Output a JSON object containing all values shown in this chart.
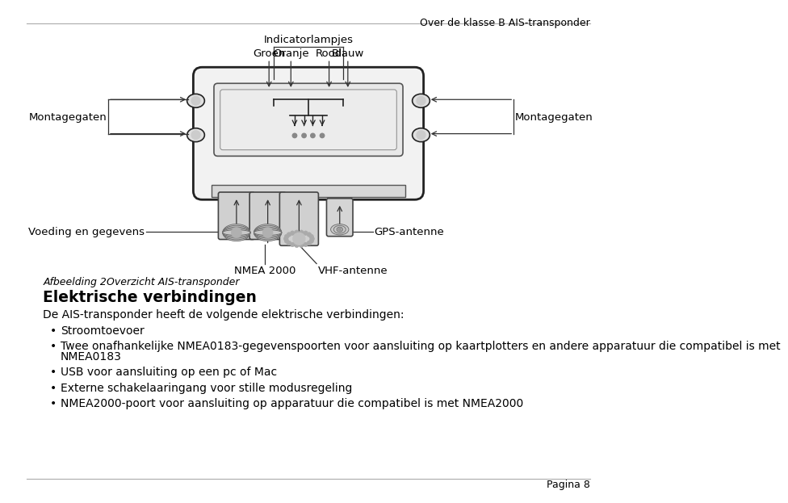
{
  "header_text": "Over de klasse B AIS-transponder",
  "page_number": "Pagina 8",
  "figure_caption_italic": "Afbeelding 2",
  "figure_caption_rest": "     Overzicht AIS-transponder",
  "section_title": "Elektrische verbindingen",
  "intro_text": "De AIS-transponder heeft de volgende elektrische verbindingen:",
  "bullet_points": [
    "Stroomtoevoer",
    "Twee onafhankelijke NMEA0183-gegevenspoorten voor aansluiting op kaartplotters en andere apparatuur die compatibel is met\nNMEA0183",
    "USB voor aansluiting op een pc of Mac",
    "Externe schakelaaringang voor stille modusregeling",
    "NMEA2000-poort voor aansluiting op apparatuur die compatibel is met NMEA2000"
  ],
  "lbl_indicatorlampjes": "Indicatorlampjes",
  "lbl_groen": "Groen",
  "lbl_oranje": "Oranje",
  "lbl_rood": "Rood",
  "lbl_blauw": "Blauw",
  "lbl_montagegaten": "Montagegaten",
  "lbl_voeding": "Voeding en gegevens",
  "lbl_nmea2000": "NMEA 2000",
  "lbl_gps": "GPS-antenne",
  "lbl_vhf": "VHF-antenne",
  "bg_color": "#ffffff",
  "text_color": "#000000",
  "lc": "#333333",
  "device_color": "#f5f5f5",
  "device_edge": "#222222"
}
